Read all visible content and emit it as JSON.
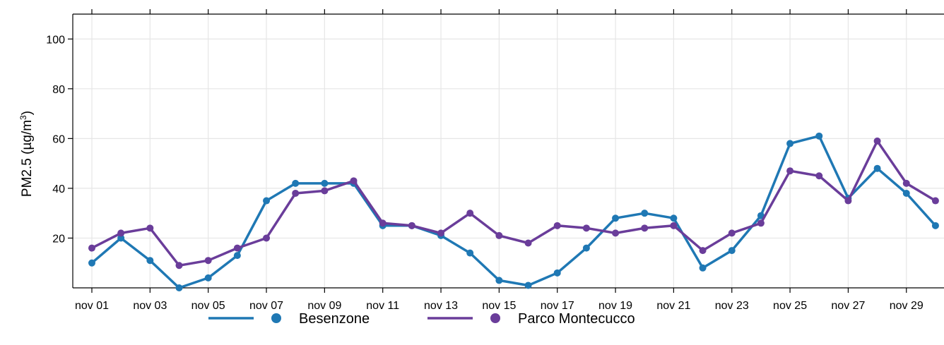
{
  "chart_data": {
    "type": "line",
    "title": "",
    "xlabel": "",
    "ylabel": {
      "main": "PM2.5 (µg/m",
      "sup": "3",
      "close": ")"
    },
    "x": [
      "nov 01",
      "nov 02",
      "nov 03",
      "nov 04",
      "nov 05",
      "nov 06",
      "nov 07",
      "nov 08",
      "nov 09",
      "nov 10",
      "nov 11",
      "nov 12",
      "nov 13",
      "nov 14",
      "nov 15",
      "nov 16",
      "nov 17",
      "nov 18",
      "nov 19",
      "nov 20",
      "nov 21",
      "nov 22",
      "nov 23",
      "nov 24",
      "nov 25",
      "nov 26",
      "nov 27",
      "nov 28",
      "nov 29",
      "nov 30"
    ],
    "x_tick_labels": [
      "nov 01",
      "nov 03",
      "nov 05",
      "nov 07",
      "nov 09",
      "nov 11",
      "nov 13",
      "nov 15",
      "nov 17",
      "nov 19",
      "nov 21",
      "nov 23",
      "nov 25",
      "nov 27",
      "nov 29"
    ],
    "y_ticks": [
      20,
      40,
      60,
      80,
      100
    ],
    "ylim": [
      0,
      110
    ],
    "grid": true,
    "legend_position": "bottom",
    "series": [
      {
        "name": "Besenzone",
        "color": "#1f78b4",
        "values": [
          10,
          20,
          11,
          0,
          4,
          13,
          35,
          42,
          42,
          42,
          25,
          25,
          21,
          14,
          3,
          1,
          6,
          16,
          28,
          30,
          28,
          8,
          15,
          29,
          58,
          61,
          36,
          48,
          38,
          25
        ]
      },
      {
        "name": "Parco Montecucco",
        "color": "#6a3d9a",
        "values": [
          16,
          22,
          24,
          9,
          11,
          16,
          20,
          38,
          39,
          43,
          26,
          25,
          22,
          30,
          21,
          18,
          25,
          24,
          22,
          24,
          25,
          15,
          22,
          26,
          47,
          45,
          35,
          59,
          42,
          35
        ]
      }
    ]
  }
}
